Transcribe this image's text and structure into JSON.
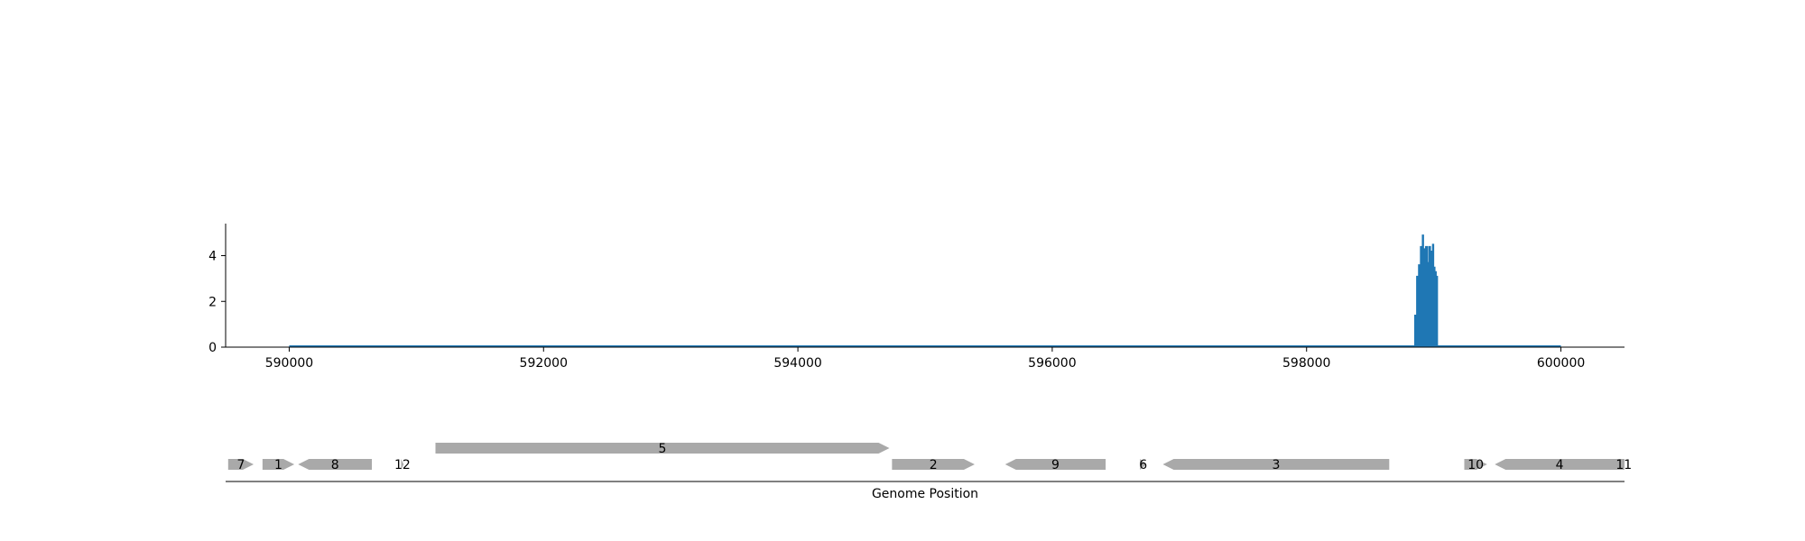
{
  "chart_data": [
    {
      "type": "area",
      "title": "",
      "xlabel": "",
      "ylabel": "",
      "xlim": [
        589500,
        600500
      ],
      "ylim": [
        0,
        5.4
      ],
      "x_ticks": [
        590000,
        592000,
        594000,
        596000,
        598000,
        600000
      ],
      "y_ticks": [
        0,
        2,
        4
      ],
      "grid": false,
      "color": "#1f77b4",
      "baseline": [
        590000,
        600000
      ],
      "series": [
        {
          "x": [
            598850,
            598865,
            598880,
            598895,
            598910,
            598920,
            598935,
            598950,
            598960,
            598975,
            598990,
            599000,
            599010,
            599020,
            599030
          ],
          "y": [
            1.4,
            3.1,
            3.6,
            4.4,
            4.9,
            4.3,
            4.4,
            3.7,
            4.4,
            4.2,
            4.5,
            3.5,
            3.3,
            3.1,
            0
          ]
        }
      ]
    },
    {
      "type": "gene-map",
      "xlabel": "Genome Position",
      "color": "#a9a9a9",
      "genes": [
        {
          "label": "7",
          "start": 589520,
          "end": 589720,
          "strand": "+",
          "row": 0
        },
        {
          "label": "1",
          "start": 589790,
          "end": 590040,
          "strand": "+",
          "row": 0
        },
        {
          "label": "8",
          "start": 590070,
          "end": 590650,
          "strand": "-",
          "row": 0
        },
        {
          "label": "12",
          "start": 590880,
          "end": 590900,
          "strand": "+",
          "row": 0
        },
        {
          "label": "5",
          "start": 591150,
          "end": 594720,
          "strand": "+",
          "row": 1
        },
        {
          "label": "2",
          "start": 594740,
          "end": 595390,
          "strand": "+",
          "row": 0
        },
        {
          "label": "9",
          "start": 595630,
          "end": 596420,
          "strand": "-",
          "row": 0
        },
        {
          "label": "6",
          "start": 596690,
          "end": 596740,
          "strand": "+",
          "row": 0
        },
        {
          "label": "3",
          "start": 596870,
          "end": 598650,
          "strand": "-",
          "row": 0
        },
        {
          "label": "10",
          "start": 599240,
          "end": 599420,
          "strand": "+",
          "row": 0
        },
        {
          "label": "4",
          "start": 599480,
          "end": 600500,
          "strand": "-",
          "row": 0
        },
        {
          "label": "11",
          "start": 600490,
          "end": 600500,
          "strand": "+",
          "row": 0
        }
      ]
    }
  ]
}
